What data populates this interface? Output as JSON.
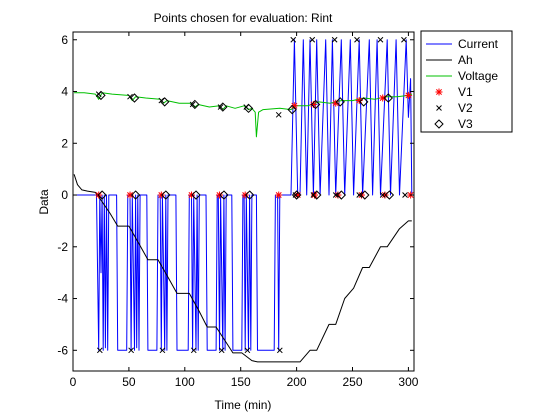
{
  "chart_data": {
    "type": "line",
    "title": "Points chosen for evaluation: Rint",
    "xlabel": "Time (min)",
    "ylabel": "Data",
    "xlim": [
      0,
      305
    ],
    "ylim": [
      -6.8,
      6.3
    ],
    "x_ticks": [
      0,
      50,
      100,
      150,
      200,
      250,
      300
    ],
    "y_ticks": [
      -6,
      -4,
      -2,
      0,
      2,
      4,
      6
    ],
    "grid": false,
    "legend_position": "top-right",
    "legend": [
      {
        "label": "Current",
        "style": "line",
        "color": "#0000ff"
      },
      {
        "label": "Ah",
        "style": "line",
        "color": "#000000"
      },
      {
        "label": "Voltage",
        "style": "line",
        "color": "#00c000"
      },
      {
        "label": "V1",
        "style": "star",
        "color": "#ff0000"
      },
      {
        "label": "V2",
        "style": "x",
        "color": "#000000"
      },
      {
        "label": "V3",
        "style": "diamond",
        "color": "#000000"
      }
    ],
    "series": [
      {
        "name": "Current",
        "color": "#0000ff",
        "points": [
          [
            0,
            0
          ],
          [
            21,
            0
          ],
          [
            23,
            -6
          ],
          [
            24,
            0
          ],
          [
            25,
            -3
          ],
          [
            26,
            0
          ],
          [
            27,
            -6
          ],
          [
            28,
            0
          ],
          [
            29,
            -5.9
          ],
          [
            30,
            0
          ],
          [
            31,
            -6
          ],
          [
            32,
            0
          ],
          [
            39,
            0
          ],
          [
            40,
            -6
          ],
          [
            48,
            -6
          ],
          [
            49,
            0
          ],
          [
            51,
            0
          ],
          [
            52,
            -6
          ],
          [
            53,
            0
          ],
          [
            54,
            -3
          ],
          [
            55,
            -6
          ],
          [
            56,
            0
          ],
          [
            57,
            -5.9
          ],
          [
            58,
            0
          ],
          [
            59,
            -6
          ],
          [
            60,
            0
          ],
          [
            66,
            0
          ],
          [
            67,
            -6
          ],
          [
            75,
            -6
          ],
          [
            76,
            0
          ],
          [
            78,
            0
          ],
          [
            79,
            -6
          ],
          [
            80,
            0
          ],
          [
            81,
            -3
          ],
          [
            82,
            -6
          ],
          [
            83,
            0
          ],
          [
            84,
            -6
          ],
          [
            85,
            0
          ],
          [
            92,
            0
          ],
          [
            93,
            -6
          ],
          [
            103,
            -6
          ],
          [
            104,
            0
          ],
          [
            106,
            0
          ],
          [
            107,
            -6
          ],
          [
            108,
            0
          ],
          [
            109,
            -3
          ],
          [
            110,
            -6
          ],
          [
            111,
            0
          ],
          [
            112,
            -6
          ],
          [
            113,
            0
          ],
          [
            119,
            0
          ],
          [
            120,
            -6
          ],
          [
            128,
            -6
          ],
          [
            129,
            0
          ],
          [
            130,
            0
          ],
          [
            131,
            -6
          ],
          [
            132,
            0
          ],
          [
            133,
            -3
          ],
          [
            134,
            -6
          ],
          [
            135,
            0
          ],
          [
            136,
            -6
          ],
          [
            137,
            0
          ],
          [
            142,
            0
          ],
          [
            143,
            -6
          ],
          [
            151,
            -6
          ],
          [
            152,
            0
          ],
          [
            153,
            0
          ],
          [
            154,
            -6
          ],
          [
            155,
            0
          ],
          [
            156,
            -3
          ],
          [
            157,
            -6
          ],
          [
            158,
            0
          ],
          [
            159,
            -6
          ],
          [
            160,
            0
          ],
          [
            164,
            0
          ],
          [
            165,
            -6
          ],
          [
            180,
            -6
          ],
          [
            181,
            0
          ],
          [
            183,
            0
          ],
          [
            184,
            -6
          ],
          [
            185,
            0
          ],
          [
            195,
            0
          ],
          [
            198,
            6
          ],
          [
            201,
            0
          ],
          [
            203,
            0
          ],
          [
            206,
            6
          ],
          [
            209,
            0
          ],
          [
            212,
            6
          ],
          [
            215,
            0
          ],
          [
            218,
            6
          ],
          [
            221,
            0
          ],
          [
            226,
            6
          ],
          [
            229,
            0
          ],
          [
            232,
            6
          ],
          [
            235,
            0
          ],
          [
            240,
            6
          ],
          [
            243,
            0
          ],
          [
            248,
            6
          ],
          [
            251,
            0
          ],
          [
            256,
            6
          ],
          [
            259,
            0
          ],
          [
            265,
            6
          ],
          [
            268,
            0
          ],
          [
            272,
            6
          ],
          [
            275,
            0
          ],
          [
            281,
            6
          ],
          [
            284,
            0
          ],
          [
            289,
            6
          ],
          [
            292,
            0
          ],
          [
            298,
            6
          ],
          [
            300,
            3
          ],
          [
            302,
            4.5
          ],
          [
            303,
            0
          ]
        ]
      },
      {
        "name": "Ah",
        "color": "#000000",
        "points": [
          [
            1,
            0.8
          ],
          [
            4,
            0.4
          ],
          [
            8,
            0.2
          ],
          [
            13,
            0.15
          ],
          [
            20,
            0.1
          ],
          [
            25,
            -0.2
          ],
          [
            33,
            -0.7
          ],
          [
            40,
            -1.2
          ],
          [
            50,
            -1.2
          ],
          [
            58,
            -1.8
          ],
          [
            67,
            -2.5
          ],
          [
            76,
            -2.5
          ],
          [
            84,
            -3.1
          ],
          [
            93,
            -3.8
          ],
          [
            104,
            -3.8
          ],
          [
            113,
            -4.5
          ],
          [
            120,
            -5.1
          ],
          [
            128,
            -5.1
          ],
          [
            137,
            -5.7
          ],
          [
            143,
            -6.1
          ],
          [
            151,
            -6.1
          ],
          [
            160,
            -6.4
          ],
          [
            165,
            -6.45
          ],
          [
            195,
            -6.45
          ],
          [
            203,
            -6.45
          ],
          [
            212,
            -6.0
          ],
          [
            218,
            -6.0
          ],
          [
            229,
            -5.0
          ],
          [
            235,
            -5.0
          ],
          [
            243,
            -4.0
          ],
          [
            251,
            -3.6
          ],
          [
            259,
            -2.8
          ],
          [
            265,
            -2.8
          ],
          [
            275,
            -2.0
          ],
          [
            281,
            -2.0
          ],
          [
            292,
            -1.3
          ],
          [
            300,
            -1.0
          ],
          [
            303,
            -1.0
          ]
        ]
      },
      {
        "name": "Voltage",
        "color": "#00c000",
        "points": [
          [
            1,
            3.95
          ],
          [
            10,
            3.95
          ],
          [
            20,
            3.9
          ],
          [
            23,
            3.7
          ],
          [
            26,
            3.95
          ],
          [
            35,
            3.9
          ],
          [
            50,
            3.85
          ],
          [
            53,
            3.65
          ],
          [
            56,
            3.8
          ],
          [
            65,
            3.75
          ],
          [
            78,
            3.7
          ],
          [
            81,
            3.55
          ],
          [
            84,
            3.65
          ],
          [
            95,
            3.55
          ],
          [
            106,
            3.55
          ],
          [
            109,
            3.4
          ],
          [
            112,
            3.5
          ],
          [
            122,
            3.4
          ],
          [
            131,
            3.45
          ],
          [
            134,
            3.3
          ],
          [
            137,
            3.45
          ],
          [
            145,
            3.35
          ],
          [
            153,
            3.45
          ],
          [
            157,
            3.3
          ],
          [
            160,
            3.35
          ],
          [
            163,
            3.2
          ],
          [
            164,
            2.25
          ],
          [
            166,
            3.2
          ],
          [
            170,
            3.3
          ],
          [
            185,
            3.35
          ],
          [
            195,
            3.3
          ],
          [
            200,
            3.45
          ],
          [
            210,
            3.45
          ],
          [
            220,
            3.6
          ],
          [
            230,
            3.55
          ],
          [
            240,
            3.65
          ],
          [
            250,
            3.65
          ],
          [
            260,
            3.75
          ],
          [
            270,
            3.7
          ],
          [
            280,
            3.8
          ],
          [
            290,
            3.8
          ],
          [
            300,
            3.85
          ],
          [
            303,
            3.9
          ]
        ]
      }
    ],
    "markers": {
      "V1": [
        [
          23,
          0
        ],
        [
          51,
          0
        ],
        [
          79,
          0
        ],
        [
          106,
          0
        ],
        [
          131,
          0
        ],
        [
          154,
          0
        ],
        [
          184,
          0
        ],
        [
          198,
          3.45
        ],
        [
          201,
          0
        ],
        [
          215,
          3.5
        ],
        [
          216,
          0
        ],
        [
          235,
          3.55
        ],
        [
          237,
          0
        ],
        [
          256,
          3.65
        ],
        [
          258,
          0
        ],
        [
          277,
          3.75
        ],
        [
          279,
          0
        ],
        [
          300,
          3.85
        ],
        [
          302,
          0
        ]
      ],
      "V2": [
        [
          23,
          3.9
        ],
        [
          24,
          -6
        ],
        [
          51,
          3.8
        ],
        [
          52,
          -6
        ],
        [
          79,
          3.65
        ],
        [
          80,
          -6
        ],
        [
          107,
          3.5
        ],
        [
          108,
          -6
        ],
        [
          132,
          3.4
        ],
        [
          133,
          -6
        ],
        [
          155,
          3.4
        ],
        [
          156,
          -6
        ],
        [
          184,
          3.1
        ],
        [
          185,
          -6
        ],
        [
          197,
          6
        ],
        [
          199,
          0
        ],
        [
          214,
          6
        ],
        [
          215,
          0
        ],
        [
          234,
          6
        ],
        [
          235,
          0
        ],
        [
          254,
          6
        ],
        [
          256,
          0
        ],
        [
          275,
          6
        ],
        [
          277,
          0
        ],
        [
          296,
          6
        ],
        [
          297,
          0
        ]
      ],
      "V3": [
        [
          25,
          3.85
        ],
        [
          26,
          0
        ],
        [
          55,
          3.75
        ],
        [
          56,
          0
        ],
        [
          82,
          3.6
        ],
        [
          83,
          0
        ],
        [
          109,
          3.5
        ],
        [
          110,
          0
        ],
        [
          134,
          3.4
        ],
        [
          135,
          0
        ],
        [
          157,
          3.35
        ],
        [
          158,
          0
        ],
        [
          196,
          3.3
        ],
        [
          200,
          0
        ],
        [
          217,
          3.5
        ],
        [
          218,
          0
        ],
        [
          239,
          3.6
        ],
        [
          240,
          0
        ],
        [
          260,
          3.6
        ],
        [
          261,
          0
        ],
        [
          282,
          3.75
        ],
        [
          283,
          0
        ]
      ]
    }
  }
}
